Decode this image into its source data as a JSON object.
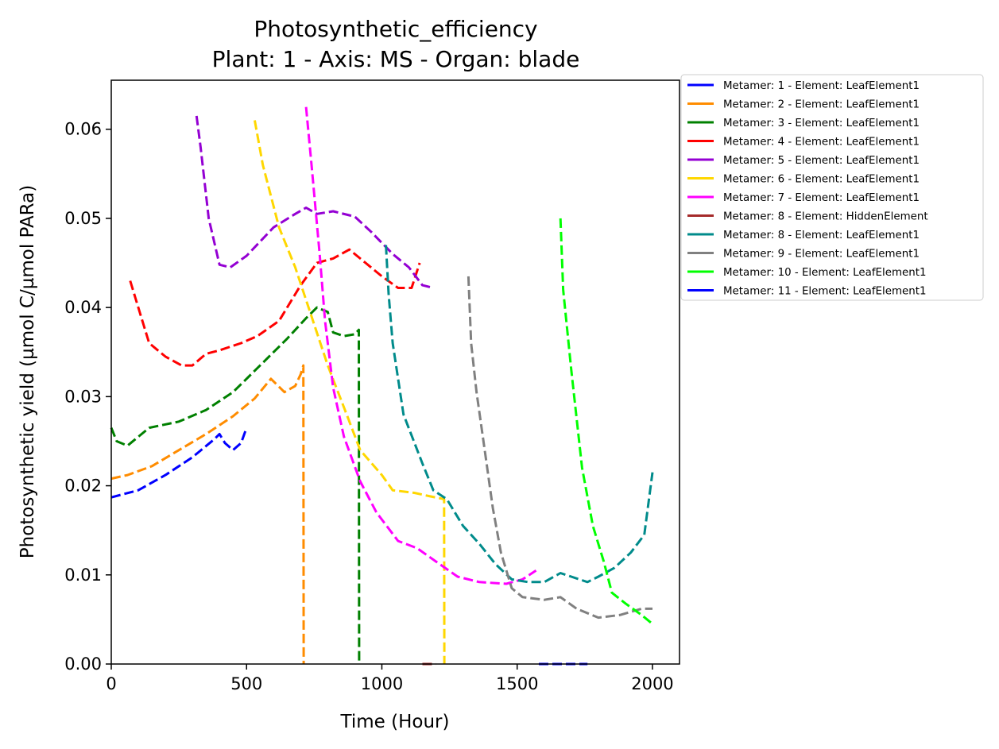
{
  "chart_data": {
    "type": "line",
    "title": "Photosynthetic_efficiency",
    "subtitle": "Plant: 1 - Axis: MS - Organ: blade",
    "xlabel": "Time (Hour)",
    "ylabel": "Photosynthetic yield (µmol C/µmol PARa)",
    "xlim": [
      0,
      2100
    ],
    "ylim": [
      0,
      0.0655
    ],
    "xticks": [
      0,
      500,
      1000,
      1500,
      2000
    ],
    "yticks": [
      0.0,
      0.01,
      0.02,
      0.03,
      0.04,
      0.05,
      0.06
    ],
    "xtick_labels": [
      "0",
      "500",
      "1000",
      "1500",
      "2000"
    ],
    "ytick_labels": [
      "0.00",
      "0.01",
      "0.02",
      "0.03",
      "0.04",
      "0.05",
      "0.06"
    ],
    "grid": false,
    "legend_position": "outside-right-top",
    "line_style": "dashed",
    "series": [
      {
        "name": "Metamer: 1 - Element: LeafElement1",
        "color": "#0000ff",
        "points": [
          [
            0,
            0.0187
          ],
          [
            100,
            0.0195
          ],
          [
            200,
            0.0212
          ],
          [
            300,
            0.0232
          ],
          [
            380,
            0.0252
          ],
          [
            400,
            0.0258
          ],
          [
            420,
            0.0248
          ],
          [
            450,
            0.024
          ],
          [
            480,
            0.0248
          ],
          [
            500,
            0.0265
          ]
        ]
      },
      {
        "name": "Metamer: 2 - Element: LeafElement1",
        "color": "#ff8c00",
        "points": [
          [
            0,
            0.0208
          ],
          [
            60,
            0.0212
          ],
          [
            150,
            0.0222
          ],
          [
            250,
            0.024
          ],
          [
            350,
            0.0258
          ],
          [
            450,
            0.0278
          ],
          [
            530,
            0.0298
          ],
          [
            590,
            0.032
          ],
          [
            640,
            0.0305
          ],
          [
            680,
            0.0312
          ],
          [
            700,
            0.0325
          ],
          [
            710,
            0.0335
          ],
          [
            711,
            0.0
          ]
        ]
      },
      {
        "name": "Metamer: 3 - Element: LeafElement1",
        "color": "#008000",
        "points": [
          [
            0,
            0.0265
          ],
          [
            20,
            0.025
          ],
          [
            60,
            0.0245
          ],
          [
            140,
            0.0265
          ],
          [
            250,
            0.0272
          ],
          [
            350,
            0.0285
          ],
          [
            450,
            0.0305
          ],
          [
            550,
            0.0335
          ],
          [
            650,
            0.0365
          ],
          [
            720,
            0.0388
          ],
          [
            760,
            0.04
          ],
          [
            800,
            0.0395
          ],
          [
            820,
            0.0372
          ],
          [
            860,
            0.0368
          ],
          [
            900,
            0.037
          ],
          [
            915,
            0.0375
          ],
          [
            916,
            0.0
          ]
        ]
      },
      {
        "name": "Metamer: 4 - Element: LeafElement1",
        "color": "#ff0000",
        "points": [
          [
            70,
            0.043
          ],
          [
            100,
            0.04
          ],
          [
            140,
            0.036
          ],
          [
            200,
            0.0345
          ],
          [
            260,
            0.0335
          ],
          [
            300,
            0.0335
          ],
          [
            350,
            0.0348
          ],
          [
            400,
            0.0352
          ],
          [
            480,
            0.036
          ],
          [
            540,
            0.0368
          ],
          [
            620,
            0.0385
          ],
          [
            700,
            0.0425
          ],
          [
            760,
            0.045
          ],
          [
            820,
            0.0455
          ],
          [
            880,
            0.0465
          ],
          [
            940,
            0.045
          ],
          [
            1000,
            0.0435
          ],
          [
            1060,
            0.0422
          ],
          [
            1110,
            0.0422
          ],
          [
            1140,
            0.045
          ]
        ]
      },
      {
        "name": "Metamer: 5 - Element: LeafElement1",
        "color": "#9400d3",
        "points": [
          [
            315,
            0.0615
          ],
          [
            330,
            0.058
          ],
          [
            360,
            0.05
          ],
          [
            400,
            0.0448
          ],
          [
            440,
            0.0445
          ],
          [
            500,
            0.0458
          ],
          [
            600,
            0.049
          ],
          [
            680,
            0.0505
          ],
          [
            720,
            0.0512
          ],
          [
            760,
            0.0505
          ],
          [
            820,
            0.0508
          ],
          [
            900,
            0.0502
          ],
          [
            960,
            0.0485
          ],
          [
            1040,
            0.046
          ],
          [
            1100,
            0.0445
          ],
          [
            1150,
            0.0425
          ],
          [
            1190,
            0.0422
          ]
        ]
      },
      {
        "name": "Metamer: 6 - Element: LeafElement1",
        "color": "#ffd700",
        "points": [
          [
            530,
            0.061
          ],
          [
            560,
            0.056
          ],
          [
            620,
            0.049
          ],
          [
            680,
            0.0445
          ],
          [
            740,
            0.039
          ],
          [
            800,
            0.0335
          ],
          [
            870,
            0.028
          ],
          [
            920,
            0.024
          ],
          [
            1000,
            0.0212
          ],
          [
            1040,
            0.0195
          ],
          [
            1120,
            0.0192
          ],
          [
            1180,
            0.0188
          ],
          [
            1230,
            0.0185
          ],
          [
            1231,
            0.0
          ]
        ]
      },
      {
        "name": "Metamer: 7 - Element: LeafElement1",
        "color": "#ff00ff",
        "points": [
          [
            720,
            0.0625
          ],
          [
            740,
            0.056
          ],
          [
            770,
            0.046
          ],
          [
            790,
            0.0385
          ],
          [
            820,
            0.031
          ],
          [
            860,
            0.0255
          ],
          [
            920,
            0.0205
          ],
          [
            980,
            0.017
          ],
          [
            1060,
            0.0138
          ],
          [
            1130,
            0.013
          ],
          [
            1200,
            0.0115
          ],
          [
            1280,
            0.0098
          ],
          [
            1360,
            0.0092
          ],
          [
            1460,
            0.009
          ],
          [
            1520,
            0.0095
          ],
          [
            1570,
            0.0105
          ]
        ]
      },
      {
        "name": "Metamer: 8 - Element: HiddenElement",
        "color": "#a52a2a",
        "points": [
          [
            1150,
            0.0
          ],
          [
            1200,
            0.0
          ]
        ]
      },
      {
        "name": "Metamer: 8 - Element: LeafElement1",
        "color": "#008b8b",
        "points": [
          [
            1015,
            0.047
          ],
          [
            1025,
            0.0415
          ],
          [
            1040,
            0.036
          ],
          [
            1080,
            0.028
          ],
          [
            1150,
            0.0225
          ],
          [
            1190,
            0.0195
          ],
          [
            1240,
            0.0185
          ],
          [
            1300,
            0.0155
          ],
          [
            1360,
            0.0135
          ],
          [
            1420,
            0.0112
          ],
          [
            1480,
            0.0095
          ],
          [
            1540,
            0.0092
          ],
          [
            1600,
            0.0092
          ],
          [
            1660,
            0.0102
          ],
          [
            1700,
            0.0098
          ],
          [
            1760,
            0.0092
          ],
          [
            1800,
            0.0098
          ],
          [
            1860,
            0.0108
          ],
          [
            1920,
            0.0125
          ],
          [
            1970,
            0.0145
          ],
          [
            2000,
            0.0215
          ]
        ]
      },
      {
        "name": "Metamer: 9 - Element: LeafElement1",
        "color": "#808080",
        "points": [
          [
            1320,
            0.0435
          ],
          [
            1330,
            0.036
          ],
          [
            1350,
            0.0305
          ],
          [
            1380,
            0.024
          ],
          [
            1410,
            0.0175
          ],
          [
            1440,
            0.0125
          ],
          [
            1480,
            0.0085
          ],
          [
            1520,
            0.0075
          ],
          [
            1600,
            0.0072
          ],
          [
            1660,
            0.0075
          ],
          [
            1720,
            0.0062
          ],
          [
            1800,
            0.0052
          ],
          [
            1880,
            0.0055
          ],
          [
            1960,
            0.0062
          ],
          [
            2000,
            0.0062
          ]
        ]
      },
      {
        "name": "Metamer: 10 - Element: LeafElement1",
        "color": "#00ff00",
        "points": [
          [
            1660,
            0.05
          ],
          [
            1670,
            0.042
          ],
          [
            1700,
            0.033
          ],
          [
            1740,
            0.022
          ],
          [
            1780,
            0.0155
          ],
          [
            1820,
            0.0115
          ],
          [
            1850,
            0.008
          ],
          [
            1900,
            0.0068
          ],
          [
            1960,
            0.0055
          ],
          [
            2000,
            0.0045
          ]
        ]
      },
      {
        "name": "Metamer: 11 - Element: LeafElement1",
        "color": "#0000ff",
        "points": [
          [
            1580,
            0.0
          ],
          [
            1760,
            0.0
          ]
        ]
      }
    ]
  }
}
